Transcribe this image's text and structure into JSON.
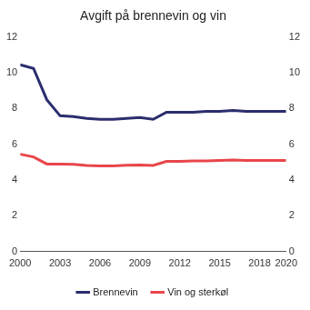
{
  "chart_data": {
    "type": "line",
    "title": "Avgift på brennevin og vin",
    "x": [
      2000,
      2001,
      2002,
      2003,
      2004,
      2005,
      2006,
      2007,
      2008,
      2009,
      2010,
      2011,
      2012,
      2013,
      2014,
      2015,
      2016,
      2017,
      2018,
      2019,
      2020
    ],
    "series": [
      {
        "name": "Brennevin",
        "color": "#2b2d6e",
        "values": [
          10.45,
          10.25,
          8.5,
          7.6,
          7.55,
          7.45,
          7.4,
          7.4,
          7.45,
          7.5,
          7.4,
          7.8,
          7.8,
          7.8,
          7.85,
          7.85,
          7.9,
          7.85,
          7.85,
          7.85,
          7.85
        ]
      },
      {
        "name": "Vin og sterkøl",
        "color": "#e8464b",
        "values": [
          5.45,
          5.3,
          4.9,
          4.9,
          4.88,
          4.82,
          4.8,
          4.8,
          4.83,
          4.85,
          4.82,
          5.05,
          5.05,
          5.08,
          5.08,
          5.1,
          5.12,
          5.1,
          5.1,
          5.1,
          5.1
        ]
      }
    ],
    "xlim": [
      2000,
      2020
    ],
    "xticks": [
      2000,
      2003,
      2006,
      2009,
      2012,
      2015,
      2018,
      2020
    ],
    "ylim": [
      0,
      12
    ],
    "yticks": [
      0,
      2,
      4,
      6,
      8,
      10,
      12
    ],
    "y2lim": [
      0,
      12
    ],
    "y2ticks": [
      0,
      2,
      4,
      6,
      8,
      10,
      12
    ],
    "grid": false,
    "legend": "bottom"
  }
}
